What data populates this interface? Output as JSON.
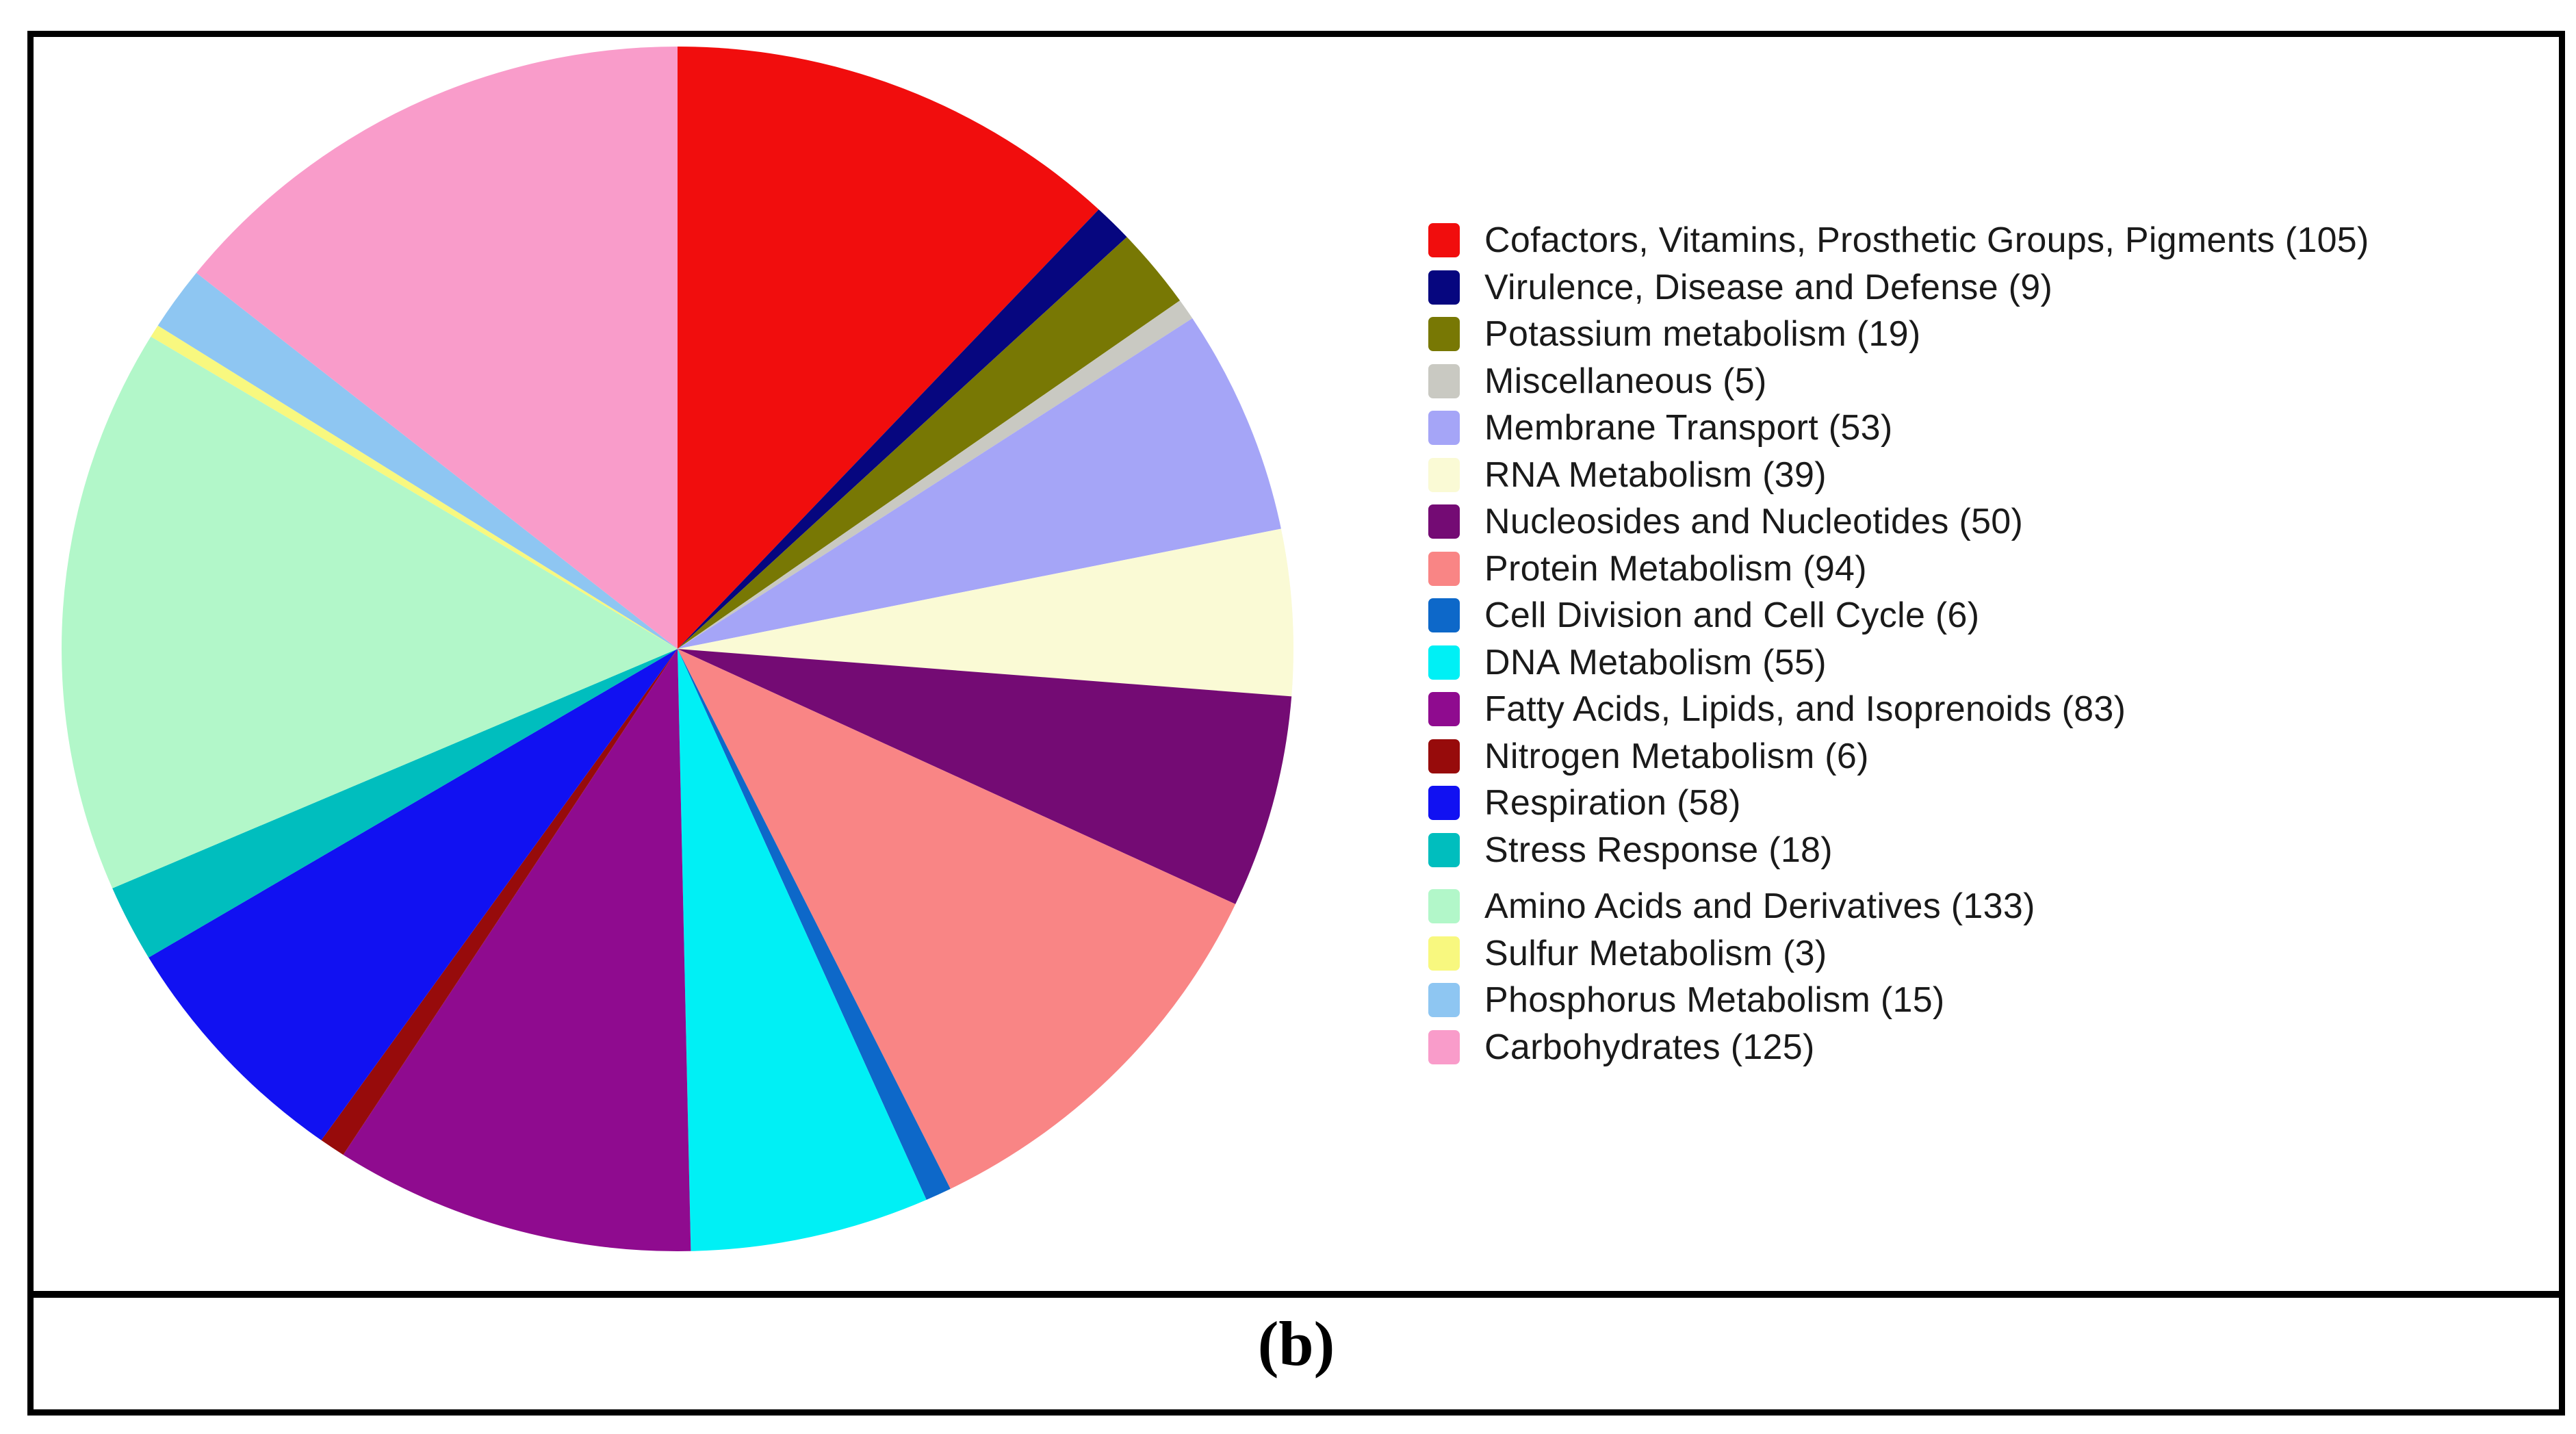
{
  "figure_label": "(b)",
  "colors": {
    "background": "#ffffff",
    "frame_border": "#000000",
    "legend_text": "#1a1a1a"
  },
  "chart_data": {
    "type": "pie",
    "title": "",
    "legend_position": "right",
    "start_angle_deg": -90,
    "direction": "clockwise",
    "total": 876,
    "slices": [
      {
        "label": "Cofactors, Vitamins, Prosthetic Groups, Pigments",
        "value": 105,
        "color": "#f10d0d"
      },
      {
        "label": "Virulence, Disease and Defense",
        "value": 9,
        "color": "#06067f"
      },
      {
        "label": "Potassium metabolism",
        "value": 19,
        "color": "#787804"
      },
      {
        "label": "Miscellaneous",
        "value": 5,
        "color": "#c9c9c2"
      },
      {
        "label": "Membrane Transport",
        "value": 53,
        "color": "#a5a5f7"
      },
      {
        "label": "RNA Metabolism",
        "value": 39,
        "color": "#fafad5"
      },
      {
        "label": "Nucleosides and Nucleotides",
        "value": 50,
        "color": "#740b74"
      },
      {
        "label": "Protein Metabolism",
        "value": 94,
        "color": "#f98585"
      },
      {
        "label": "Cell Division and Cell Cycle",
        "value": 6,
        "color": "#0d68c9"
      },
      {
        "label": "DNA Metabolism",
        "value": 55,
        "color": "#00f0f5"
      },
      {
        "label": "Fatty Acids, Lipids, and Isoprenoids",
        "value": 83,
        "color": "#8f0b8f"
      },
      {
        "label": "Nitrogen Metabolism",
        "value": 6,
        "color": "#970b0b"
      },
      {
        "label": "Respiration",
        "value": 58,
        "color": "#1111f2"
      },
      {
        "label": "Stress Response",
        "value": 18,
        "color": "#00bebe"
      },
      {
        "label": "Amino Acids and Derivatives",
        "value": 133,
        "color": "#b2f7c9",
        "group_break": true
      },
      {
        "label": "Sulfur Metabolism",
        "value": 3,
        "color": "#f8f87f"
      },
      {
        "label": "Phosphorus Metabolism",
        "value": 15,
        "color": "#8ec6f2"
      },
      {
        "label": "Carbohydrates",
        "value": 125,
        "color": "#f99cca"
      }
    ]
  }
}
